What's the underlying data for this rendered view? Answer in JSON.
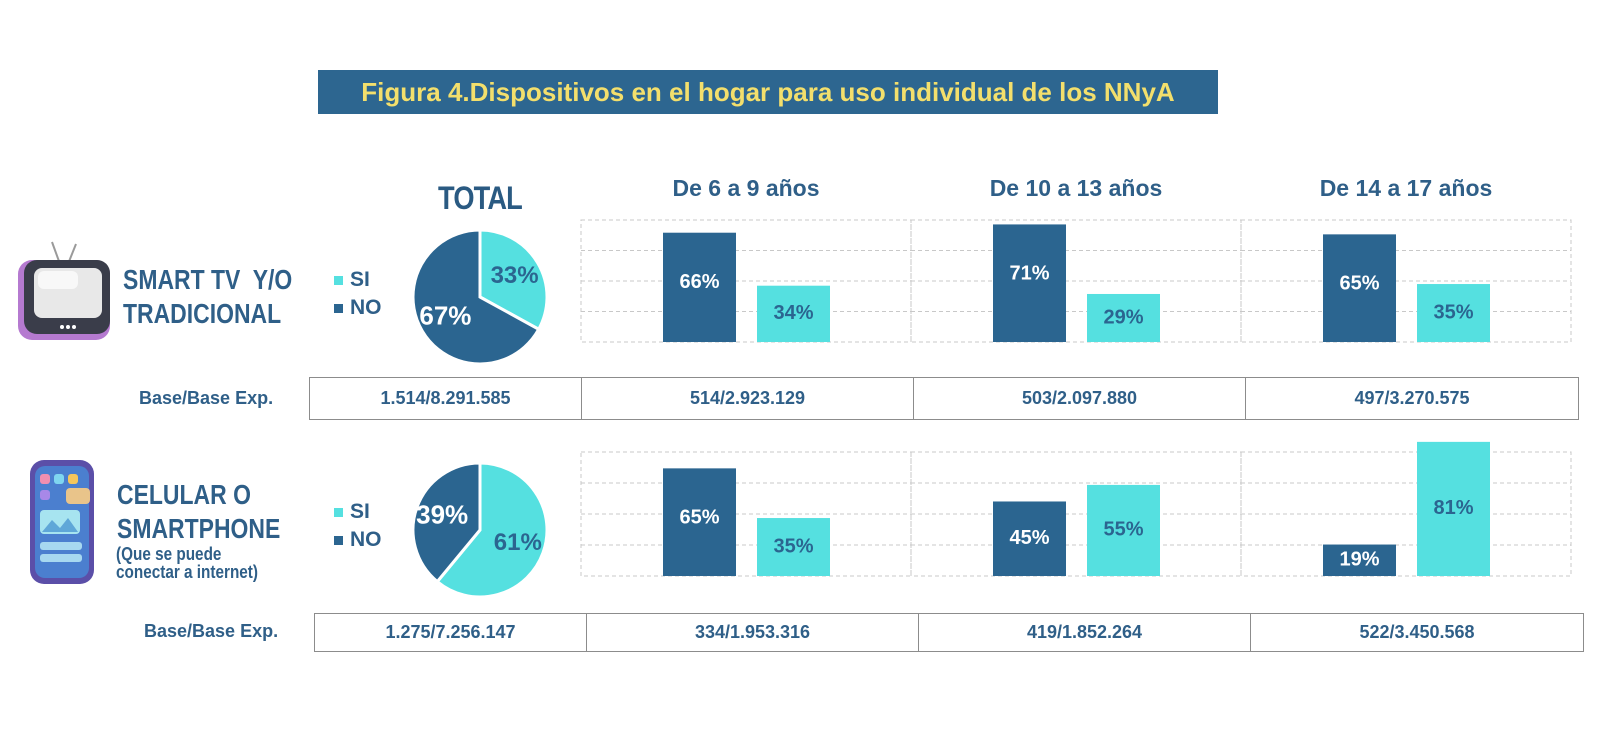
{
  "title": "Figura 4.Dispositivos en el hogar para uso individual de los NNyA",
  "colors": {
    "si": "#55e0e0",
    "no": "#2b6590",
    "title_bg": "#2d6690",
    "title_text": "#f3df6c"
  },
  "columns": {
    "total": "TOTAL",
    "g1": "De 6 a 9 años",
    "g2": "De 10 a 13 años",
    "g3": "De 14 a 17 años"
  },
  "legend": {
    "si": "SI",
    "no": "NO"
  },
  "base_label": "Base/Base Exp.",
  "rows": [
    {
      "label_line1": "SMART TV  Y/O",
      "label_line2": "TRADICIONAL",
      "icon": "tv-icon",
      "bases": [
        "1.514/8.291.585",
        "514/2.923.129",
        "503/2.097.880",
        "497/3.270.575"
      ]
    },
    {
      "label_line1": "CELULAR O",
      "label_line2": "SMARTPHONE",
      "sub_line1": "(Que se puede",
      "sub_line2": "conectar a internet)",
      "icon": "smartphone-icon",
      "bases": [
        "1.275/7.256.147",
        "334/1.953.316",
        "419/1.852.264",
        "522/3.450.568"
      ]
    }
  ],
  "chart_data": [
    {
      "type": "pie",
      "title": "TOTAL",
      "row": "SMART TV  Y/O TRADICIONAL",
      "labels": [
        "SI",
        "NO"
      ],
      "values": [
        33,
        67
      ]
    },
    {
      "type": "bar",
      "row": "SMART TV  Y/O TRADICIONAL",
      "categories": [
        "De 6 a 9 años",
        "De 10 a 13 años",
        "De 14 a 17 años"
      ],
      "series": [
        {
          "name": "NO",
          "values": [
            66,
            71,
            65
          ]
        },
        {
          "name": "SI",
          "values": [
            34,
            29,
            35
          ]
        }
      ],
      "ylim": [
        0,
        100
      ]
    },
    {
      "type": "pie",
      "title": "TOTAL",
      "row": "CELULAR O SMARTPHONE",
      "labels": [
        "SI",
        "NO"
      ],
      "values": [
        61,
        39
      ]
    },
    {
      "type": "bar",
      "row": "CELULAR O SMARTPHONE",
      "categories": [
        "De 6 a 9 años",
        "De 10 a 13 años",
        "De 14 a 17 años"
      ],
      "series": [
        {
          "name": "NO",
          "values": [
            65,
            45,
            19
          ]
        },
        {
          "name": "SI",
          "values": [
            35,
            55,
            81
          ]
        }
      ],
      "ylim": [
        0,
        100
      ]
    }
  ]
}
